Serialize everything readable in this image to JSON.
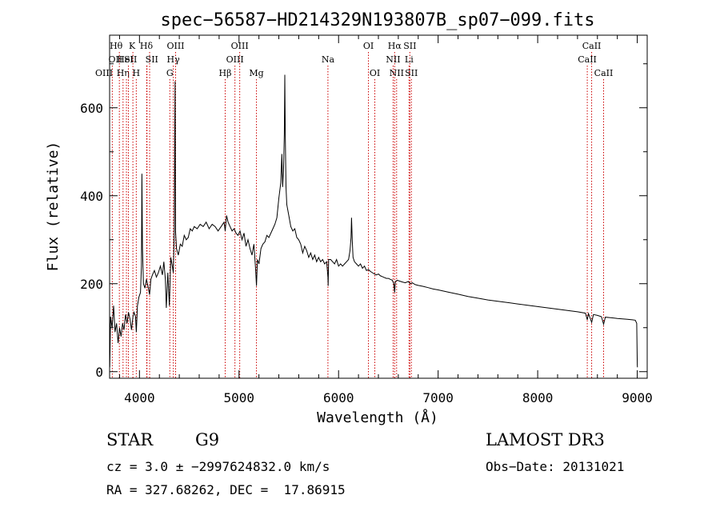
{
  "chart_data": {
    "type": "line",
    "title": "spec−56587−HD214329N193807B_sp07−099.fits",
    "xlabel": "Wavelength (Å)",
    "ylabel": "Flux (relative)",
    "xlim": [
      3700,
      9100
    ],
    "ylim": [
      -15,
      765
    ],
    "xticks": [
      4000,
      5000,
      6000,
      7000,
      8000,
      9000
    ],
    "yticks": [
      0,
      200,
      400,
      600
    ],
    "grid": false,
    "line_color": "#000000",
    "marker_color": "#cc0000",
    "spectrum": [
      [
        3702,
        10
      ],
      [
        3710,
        125
      ],
      [
        3725,
        100
      ],
      [
        3740,
        150
      ],
      [
        3755,
        90
      ],
      [
        3770,
        110
      ],
      [
        3785,
        65
      ],
      [
        3800,
        100
      ],
      [
        3815,
        80
      ],
      [
        3830,
        110
      ],
      [
        3845,
        95
      ],
      [
        3860,
        130
      ],
      [
        3875,
        110
      ],
      [
        3890,
        135
      ],
      [
        3905,
        120
      ],
      [
        3920,
        95
      ],
      [
        3935,
        125
      ],
      [
        3945,
        135
      ],
      [
        3960,
        125
      ],
      [
        3968,
        90
      ],
      [
        3980,
        150
      ],
      [
        3995,
        170
      ],
      [
        4010,
        180
      ],
      [
        4020,
        240
      ],
      [
        4025,
        450
      ],
      [
        4030,
        280
      ],
      [
        4040,
        200
      ],
      [
        4055,
        190
      ],
      [
        4070,
        210
      ],
      [
        4085,
        195
      ],
      [
        4102,
        175
      ],
      [
        4115,
        210
      ],
      [
        4130,
        220
      ],
      [
        4150,
        230
      ],
      [
        4170,
        215
      ],
      [
        4190,
        225
      ],
      [
        4210,
        240
      ],
      [
        4230,
        220
      ],
      [
        4245,
        250
      ],
      [
        4260,
        210
      ],
      [
        4270,
        145
      ],
      [
        4285,
        225
      ],
      [
        4300,
        150
      ],
      [
        4315,
        260
      ],
      [
        4330,
        240
      ],
      [
        4340,
        225
      ],
      [
        4350,
        320
      ],
      [
        4355,
        560
      ],
      [
        4358,
        660
      ],
      [
        4362,
        320
      ],
      [
        4372,
        280
      ],
      [
        4390,
        265
      ],
      [
        4410,
        290
      ],
      [
        4430,
        285
      ],
      [
        4450,
        310
      ],
      [
        4470,
        300
      ],
      [
        4490,
        305
      ],
      [
        4510,
        325
      ],
      [
        4530,
        320
      ],
      [
        4550,
        330
      ],
      [
        4580,
        325
      ],
      [
        4610,
        335
      ],
      [
        4640,
        330
      ],
      [
        4670,
        340
      ],
      [
        4700,
        325
      ],
      [
        4730,
        335
      ],
      [
        4760,
        330
      ],
      [
        4790,
        320
      ],
      [
        4820,
        330
      ],
      [
        4850,
        340
      ],
      [
        4861,
        320
      ],
      [
        4875,
        355
      ],
      [
        4890,
        340
      ],
      [
        4910,
        330
      ],
      [
        4930,
        320
      ],
      [
        4950,
        325
      ],
      [
        4970,
        315
      ],
      [
        4990,
        310
      ],
      [
        5010,
        320
      ],
      [
        5030,
        300
      ],
      [
        5050,
        315
      ],
      [
        5070,
        285
      ],
      [
        5090,
        300
      ],
      [
        5110,
        280
      ],
      [
        5130,
        265
      ],
      [
        5150,
        290
      ],
      [
        5167,
        230
      ],
      [
        5175,
        195
      ],
      [
        5185,
        255
      ],
      [
        5200,
        245
      ],
      [
        5220,
        280
      ],
      [
        5240,
        290
      ],
      [
        5260,
        295
      ],
      [
        5280,
        310
      ],
      [
        5300,
        305
      ],
      [
        5320,
        315
      ],
      [
        5340,
        325
      ],
      [
        5360,
        335
      ],
      [
        5380,
        350
      ],
      [
        5400,
        395
      ],
      [
        5420,
        430
      ],
      [
        5430,
        495
      ],
      [
        5438,
        420
      ],
      [
        5448,
        465
      ],
      [
        5455,
        540
      ],
      [
        5460,
        675
      ],
      [
        5465,
        540
      ],
      [
        5472,
        420
      ],
      [
        5480,
        380
      ],
      [
        5500,
        355
      ],
      [
        5520,
        330
      ],
      [
        5540,
        320
      ],
      [
        5560,
        325
      ],
      [
        5580,
        305
      ],
      [
        5600,
        300
      ],
      [
        5620,
        290
      ],
      [
        5640,
        270
      ],
      [
        5660,
        285
      ],
      [
        5680,
        275
      ],
      [
        5700,
        260
      ],
      [
        5720,
        270
      ],
      [
        5740,
        255
      ],
      [
        5760,
        265
      ],
      [
        5780,
        250
      ],
      [
        5800,
        260
      ],
      [
        5820,
        250
      ],
      [
        5840,
        255
      ],
      [
        5860,
        245
      ],
      [
        5880,
        250
      ],
      [
        5893,
        215
      ],
      [
        5895,
        195
      ],
      [
        5900,
        255
      ],
      [
        5920,
        255
      ],
      [
        5940,
        250
      ],
      [
        5960,
        245
      ],
      [
        5980,
        255
      ],
      [
        6000,
        240
      ],
      [
        6020,
        245
      ],
      [
        6040,
        240
      ],
      [
        6060,
        245
      ],
      [
        6080,
        250
      ],
      [
        6100,
        255
      ],
      [
        6115,
        275
      ],
      [
        6125,
        305
      ],
      [
        6130,
        350
      ],
      [
        6137,
        300
      ],
      [
        6145,
        260
      ],
      [
        6160,
        250
      ],
      [
        6180,
        245
      ],
      [
        6200,
        240
      ],
      [
        6220,
        245
      ],
      [
        6240,
        235
      ],
      [
        6260,
        240
      ],
      [
        6280,
        230
      ],
      [
        6300,
        232
      ],
      [
        6320,
        228
      ],
      [
        6340,
        225
      ],
      [
        6360,
        222
      ],
      [
        6380,
        220
      ],
      [
        6400,
        222
      ],
      [
        6420,
        218
      ],
      [
        6440,
        216
      ],
      [
        6460,
        214
      ],
      [
        6480,
        212
      ],
      [
        6500,
        212
      ],
      [
        6520,
        210
      ],
      [
        6540,
        208
      ],
      [
        6555,
        200
      ],
      [
        6563,
        180
      ],
      [
        6570,
        205
      ],
      [
        6590,
        208
      ],
      [
        6610,
        206
      ],
      [
        6640,
        204
      ],
      [
        6670,
        202
      ],
      [
        6700,
        205
      ],
      [
        6720,
        200
      ],
      [
        6740,
        202
      ],
      [
        6770,
        198
      ],
      [
        6800,
        196
      ],
      [
        6850,
        194
      ],
      [
        6900,
        191
      ],
      [
        6950,
        188
      ],
      [
        7000,
        186
      ],
      [
        7100,
        181
      ],
      [
        7200,
        176
      ],
      [
        7300,
        171
      ],
      [
        7400,
        167
      ],
      [
        7500,
        163
      ],
      [
        7600,
        160
      ],
      [
        7700,
        157
      ],
      [
        7800,
        154
      ],
      [
        7900,
        151
      ],
      [
        8000,
        148
      ],
      [
        8100,
        145
      ],
      [
        8200,
        142
      ],
      [
        8300,
        139
      ],
      [
        8400,
        136
      ],
      [
        8480,
        133
      ],
      [
        8498,
        118
      ],
      [
        8510,
        132
      ],
      [
        8542,
        112
      ],
      [
        8560,
        130
      ],
      [
        8600,
        128
      ],
      [
        8640,
        125
      ],
      [
        8662,
        108
      ],
      [
        8680,
        124
      ],
      [
        8720,
        123
      ],
      [
        8760,
        122
      ],
      [
        8800,
        121
      ],
      [
        8850,
        120
      ],
      [
        8900,
        119
      ],
      [
        8950,
        118
      ],
      [
        8980,
        117
      ],
      [
        8995,
        110
      ],
      [
        9000,
        15
      ],
      [
        9002,
        10
      ]
    ],
    "lines": [
      {
        "label": "Hθ",
        "x": 3798,
        "row": 0,
        "offset": -4
      },
      {
        "label": "OII",
        "x": 3727,
        "row": 1,
        "offset": 4
      },
      {
        "label": "OIII",
        "x": 3869,
        "row": 2,
        "offset": -28
      },
      {
        "label": "Hη",
        "x": 3835,
        "row": 2,
        "offset": 0
      },
      {
        "label": "HeI",
        "x": 3889,
        "row": 1,
        "offset": -4
      },
      {
        "label": "K",
        "x": 3934,
        "row": 0,
        "offset": -1
      },
      {
        "label": "SII",
        "x": 4072,
        "row": 1,
        "offset": -20
      },
      {
        "label": "H",
        "x": 3968,
        "row": 2,
        "offset": 0
      },
      {
        "label": "Hδ",
        "x": 4102,
        "row": 0,
        "offset": -4
      },
      {
        "label": "SII",
        "x": 4076,
        "row": 1,
        "offset": 6
      },
      {
        "label": "OIII",
        "x": 4363,
        "row": 0,
        "offset": 0
      },
      {
        "label": "Hγ",
        "x": 4340,
        "row": 1,
        "offset": 0
      },
      {
        "label": "G",
        "x": 4305,
        "row": 2,
        "offset": 0
      },
      {
        "label": "OIII",
        "x": 5007,
        "row": 0,
        "offset": 0
      },
      {
        "label": "OIII",
        "x": 4959,
        "row": 1,
        "offset": 0
      },
      {
        "label": "Hβ",
        "x": 4861,
        "row": 2,
        "offset": 0
      },
      {
        "label": "Mg",
        "x": 5175,
        "row": 2,
        "offset": 0
      },
      {
        "label": "Na",
        "x": 5893,
        "row": 1,
        "offset": 0
      },
      {
        "label": "OI",
        "x": 6300,
        "row": 0,
        "offset": 0
      },
      {
        "label": "OI",
        "x": 6364,
        "row": 2,
        "offset": 0
      },
      {
        "label": "Hα",
        "x": 6563,
        "row": 0,
        "offset": 0
      },
      {
        "label": "NII",
        "x": 6548,
        "row": 1,
        "offset": 0
      },
      {
        "label": "NII",
        "x": 6583,
        "row": 2,
        "offset": 0
      },
      {
        "label": "SII",
        "x": 6716,
        "row": 0,
        "offset": 0
      },
      {
        "label": "Li",
        "x": 6708,
        "row": 1,
        "offset": 0
      },
      {
        "label": "SII",
        "x": 6731,
        "row": 2,
        "offset": 0
      },
      {
        "label": "CaII",
        "x": 8542,
        "row": 0,
        "offset": 0
      },
      {
        "label": "CaII",
        "x": 8498,
        "row": 1,
        "offset": 0
      },
      {
        "label": "CaII",
        "x": 8662,
        "row": 2,
        "offset": 0
      }
    ]
  },
  "footer": {
    "object_class": "STAR",
    "subclass": "G9",
    "survey": "LAMOST DR3",
    "redshift": "cz = 3.0 ± −2997624832.0 km/s",
    "obs_date": "Obs−Date: 20131021",
    "coords": "RA = 327.68262, DEC =  17.86915"
  }
}
